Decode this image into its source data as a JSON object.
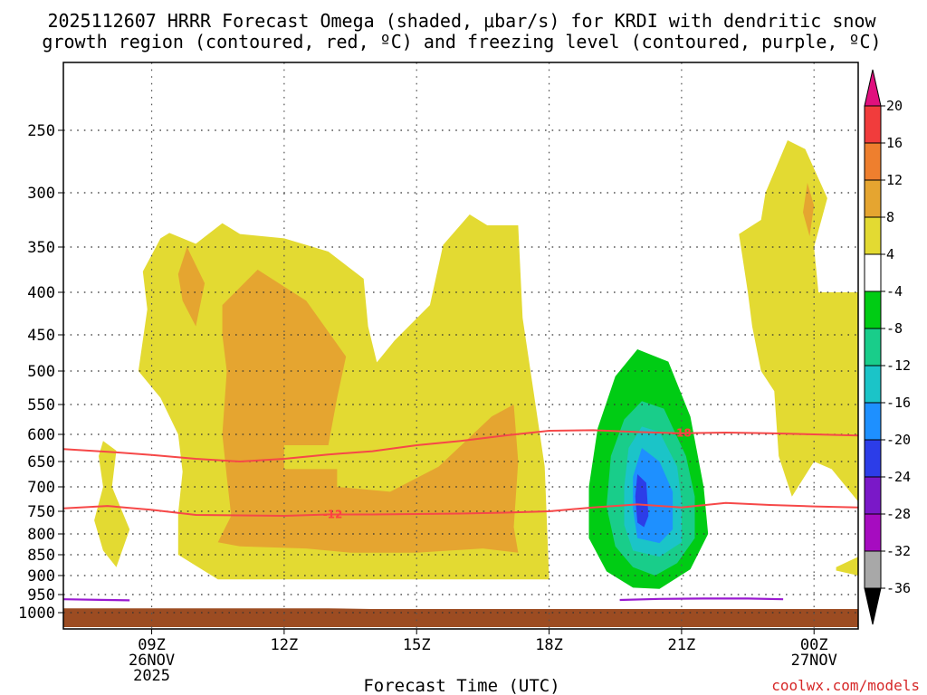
{
  "chart_data": {
    "type": "time-height-cross-section",
    "title_line1": "2025112607 HRRR Forecast Omega (shaded, μbar/s) for KRDI with dendritic snow",
    "title_line2": "growth region (contoured, red, ºC) and freezing level (contoured, purple, ºC)",
    "xlabel": "Forecast Time (UTC)",
    "credit": "coolwx.com/models",
    "xlim_hours": [
      7,
      25
    ],
    "ylim_hpa": [
      220,
      1040
    ],
    "y_ticks": [
      {
        "value": 250,
        "label": "250"
      },
      {
        "value": 300,
        "label": "300"
      },
      {
        "value": 350,
        "label": "350"
      },
      {
        "value": 400,
        "label": "400"
      },
      {
        "value": 450,
        "label": "450"
      },
      {
        "value": 500,
        "label": "500"
      },
      {
        "value": 550,
        "label": "550"
      },
      {
        "value": 600,
        "label": "600"
      },
      {
        "value": 650,
        "label": "650"
      },
      {
        "value": 700,
        "label": "700"
      },
      {
        "value": 750,
        "label": "750"
      },
      {
        "value": 800,
        "label": "800"
      },
      {
        "value": 850,
        "label": "850"
      },
      {
        "value": 900,
        "label": "900"
      },
      {
        "value": 950,
        "label": "950"
      },
      {
        "value": 1000,
        "label": "1000"
      }
    ],
    "x_ticks": [
      {
        "hour": 9,
        "lines": [
          "09Z",
          "26NOV",
          "2025"
        ]
      },
      {
        "hour": 12,
        "lines": [
          "12Z"
        ]
      },
      {
        "hour": 15,
        "lines": [
          "15Z"
        ]
      },
      {
        "hour": 18,
        "lines": [
          "18Z"
        ]
      },
      {
        "hour": 21,
        "lines": [
          "21Z"
        ]
      },
      {
        "hour": 24,
        "lines": [
          "00Z",
          "27NOV"
        ]
      }
    ],
    "colorbar": {
      "labels": [
        "20",
        "16",
        "12",
        "8",
        "4",
        "-4",
        "-8",
        "-12",
        "-16",
        "-20",
        "-24",
        "-28",
        "-32",
        "-36"
      ],
      "top_arrow_color": "#e0107e",
      "bottom_arrow_color": "#000000",
      "bins": [
        {
          "range": "16 to 20",
          "color": "#f13c3c"
        },
        {
          "range": "12 to 16",
          "color": "#ee7f2e"
        },
        {
          "range": "8 to 12",
          "color": "#e5a530"
        },
        {
          "range": "4 to 8",
          "color": "#e3da32"
        },
        {
          "range": "-4 to 4",
          "color": "#ffffff"
        },
        {
          "range": "-8 to -4",
          "color": "#00cc14"
        },
        {
          "range": "-12 to -8",
          "color": "#19cd8a"
        },
        {
          "range": "-16 to -12",
          "color": "#1bc4c8"
        },
        {
          "range": "-20 to -16",
          "color": "#1e90ff"
        },
        {
          "range": "-24 to -20",
          "color": "#2c3de8"
        },
        {
          "range": "-28 to -24",
          "color": "#7a18c8"
        },
        {
          "range": "-32 to -28",
          "color": "#a60cc0"
        },
        {
          "range": "-36 to -32",
          "color": "#a8a8a8"
        }
      ]
    },
    "colors": {
      "ground": "#9c4c22",
      "dgz_contour": "#f64848",
      "freezing_contour": "#9a1ad0",
      "yellow": "#e3da32",
      "orange": "#e5a530",
      "green": "#00cc14",
      "teal": "#19cd8a",
      "cyan": "#1bc4c8",
      "blue": "#1e90ff",
      "dark_blue": "#2c3de8"
    },
    "contours": {
      "dgz_top": {
        "label": "-18",
        "label_hour": 21.0,
        "points": [
          [
            7,
            627
          ],
          [
            8,
            632
          ],
          [
            9,
            638
          ],
          [
            10,
            645
          ],
          [
            11,
            650
          ],
          [
            12,
            645
          ],
          [
            13,
            637
          ],
          [
            14,
            631
          ],
          [
            15,
            620
          ],
          [
            16,
            612
          ],
          [
            17,
            602
          ],
          [
            18,
            594
          ],
          [
            19,
            593
          ],
          [
            20,
            596
          ],
          [
            21,
            598
          ],
          [
            22,
            597
          ],
          [
            23,
            598
          ],
          [
            24,
            600
          ],
          [
            25,
            602
          ]
        ]
      },
      "dgz_bottom": {
        "label": "-12",
        "label_hour": 13.1,
        "points": [
          [
            7,
            744
          ],
          [
            8,
            739
          ],
          [
            9,
            747
          ],
          [
            10,
            758
          ],
          [
            11,
            759
          ],
          [
            12,
            760
          ],
          [
            13,
            757
          ],
          [
            14,
            757
          ],
          [
            15,
            756
          ],
          [
            16,
            755
          ],
          [
            17,
            753
          ],
          [
            18,
            750
          ],
          [
            19,
            742
          ],
          [
            20,
            736
          ],
          [
            21,
            742
          ],
          [
            22,
            733
          ],
          [
            23,
            737
          ],
          [
            24,
            740
          ],
          [
            25,
            742
          ]
        ]
      },
      "freezing_level": {
        "segments": [
          [
            [
              7,
              963
            ],
            [
              8,
              965
            ],
            [
              8.5,
              966
            ]
          ],
          [
            [
              19.6,
              965
            ],
            [
              20.5,
              962
            ],
            [
              21.5,
              961
            ],
            [
              22.5,
              961
            ],
            [
              23.3,
              963
            ]
          ]
        ]
      }
    },
    "omega_regions": [
      {
        "level": "4 to 8",
        "points": [
          [
            8.8,
            377
          ],
          [
            9.2,
            342
          ],
          [
            9.4,
            337
          ],
          [
            10,
            347
          ],
          [
            10.6,
            328
          ],
          [
            11,
            338
          ],
          [
            12,
            342
          ],
          [
            13,
            355
          ],
          [
            13.8,
            385
          ],
          [
            13.9,
            440
          ],
          [
            14.1,
            488
          ],
          [
            14.5,
            458
          ],
          [
            15.3,
            415
          ],
          [
            15.6,
            348
          ],
          [
            16.2,
            320
          ],
          [
            16.6,
            330
          ],
          [
            17.3,
            330
          ],
          [
            17.4,
            430
          ],
          [
            17.9,
            660
          ],
          [
            18,
            910
          ],
          [
            16.5,
            910
          ],
          [
            14,
            910
          ],
          [
            12,
            910
          ],
          [
            10.5,
            910
          ],
          [
            9.6,
            850
          ],
          [
            9.6,
            755
          ],
          [
            9.7,
            670
          ],
          [
            9.6,
            600
          ],
          [
            9.2,
            540
          ],
          [
            8.7,
            500
          ],
          [
            8.9,
            420
          ]
        ]
      },
      {
        "level": "4 to 8",
        "points": [
          [
            7.9,
            612
          ],
          [
            8.2,
            630
          ],
          [
            8.1,
            700
          ],
          [
            8.5,
            790
          ],
          [
            8.2,
            880
          ],
          [
            7.9,
            840
          ],
          [
            7.7,
            770
          ],
          [
            7.9,
            700
          ],
          [
            7.8,
            640
          ]
        ]
      },
      {
        "level": "4 to 8",
        "points": [
          [
            22.3,
            338
          ],
          [
            22.8,
            325
          ],
          [
            22.9,
            300
          ],
          [
            23.4,
            258
          ],
          [
            23.8,
            265
          ],
          [
            24.3,
            305
          ],
          [
            24.0,
            350
          ],
          [
            24.1,
            400
          ],
          [
            25,
            400
          ],
          [
            25,
            730
          ],
          [
            24.4,
            665
          ],
          [
            24,
            650
          ],
          [
            23.5,
            720
          ],
          [
            23.2,
            640
          ],
          [
            23.1,
            530
          ],
          [
            22.8,
            500
          ],
          [
            22.6,
            440
          ],
          [
            22.5,
            400
          ]
        ]
      },
      {
        "level": "4 to 8",
        "points": [
          [
            24.5,
            880
          ],
          [
            25,
            855
          ],
          [
            25,
            900
          ],
          [
            24.5,
            888
          ]
        ]
      },
      {
        "level": "8 to 12",
        "points": [
          [
            9.8,
            350
          ],
          [
            10.2,
            390
          ],
          [
            10,
            440
          ],
          [
            9.7,
            410
          ],
          [
            9.6,
            380
          ]
        ]
      },
      {
        "level": "8 to 12",
        "points": [
          [
            10.6,
            415
          ],
          [
            11.4,
            375
          ],
          [
            12.5,
            410
          ],
          [
            13.4,
            480
          ],
          [
            13.2,
            540
          ],
          [
            13.0,
            620
          ],
          [
            12.0,
            620
          ],
          [
            12.0,
            665
          ],
          [
            13.2,
            665
          ],
          [
            13.2,
            700
          ],
          [
            14.4,
            710
          ],
          [
            15.5,
            660
          ],
          [
            16.7,
            570
          ],
          [
            17.2,
            550
          ],
          [
            17.3,
            650
          ],
          [
            17.2,
            785
          ],
          [
            17.3,
            845
          ],
          [
            16.5,
            835
          ],
          [
            15,
            845
          ],
          [
            13.5,
            845
          ],
          [
            12.5,
            835
          ],
          [
            11,
            830
          ],
          [
            10.5,
            820
          ],
          [
            10.8,
            760
          ],
          [
            10.7,
            680
          ],
          [
            10.6,
            600
          ],
          [
            10.7,
            500
          ],
          [
            10.6,
            450
          ]
        ]
      },
      {
        "level": "8 to 12",
        "points": [
          [
            23.85,
            292
          ],
          [
            24.0,
            312
          ],
          [
            23.9,
            340
          ],
          [
            23.75,
            318
          ]
        ]
      },
      {
        "level": "-8 to -4",
        "points": [
          [
            20.0,
            470
          ],
          [
            20.7,
            487
          ],
          [
            21.2,
            570
          ],
          [
            21.5,
            700
          ],
          [
            21.6,
            800
          ],
          [
            21.2,
            885
          ],
          [
            20.5,
            935
          ],
          [
            19.9,
            932
          ],
          [
            19.3,
            890
          ],
          [
            18.9,
            810
          ],
          [
            18.9,
            700
          ],
          [
            19.1,
            590
          ],
          [
            19.5,
            508
          ]
        ]
      },
      {
        "level": "-12 to -8",
        "points": [
          [
            20.1,
            545
          ],
          [
            20.6,
            557
          ],
          [
            21.1,
            640
          ],
          [
            21.3,
            720
          ],
          [
            21.3,
            810
          ],
          [
            20.9,
            870
          ],
          [
            20.4,
            900
          ],
          [
            19.9,
            880
          ],
          [
            19.5,
            830
          ],
          [
            19.3,
            740
          ],
          [
            19.4,
            640
          ],
          [
            19.7,
            575
          ]
        ]
      },
      {
        "level": "-16 to -12",
        "points": [
          [
            20.1,
            587
          ],
          [
            20.5,
            596
          ],
          [
            20.9,
            660
          ],
          [
            21.0,
            730
          ],
          [
            21.0,
            820
          ],
          [
            20.5,
            855
          ],
          [
            19.9,
            840
          ],
          [
            19.7,
            780
          ],
          [
            19.7,
            700
          ],
          [
            19.8,
            625
          ]
        ]
      },
      {
        "level": "-20 to -16",
        "points": [
          [
            20.1,
            625
          ],
          [
            20.5,
            650
          ],
          [
            20.8,
            710
          ],
          [
            20.8,
            790
          ],
          [
            20.5,
            822
          ],
          [
            20.0,
            810
          ],
          [
            19.9,
            745
          ],
          [
            19.9,
            680
          ]
        ]
      },
      {
        "level": "-24 to -20",
        "points": [
          [
            20.0,
            675
          ],
          [
            20.2,
            692
          ],
          [
            20.25,
            760
          ],
          [
            20.15,
            785
          ],
          [
            20.0,
            775
          ],
          [
            19.95,
            720
          ]
        ]
      }
    ]
  }
}
